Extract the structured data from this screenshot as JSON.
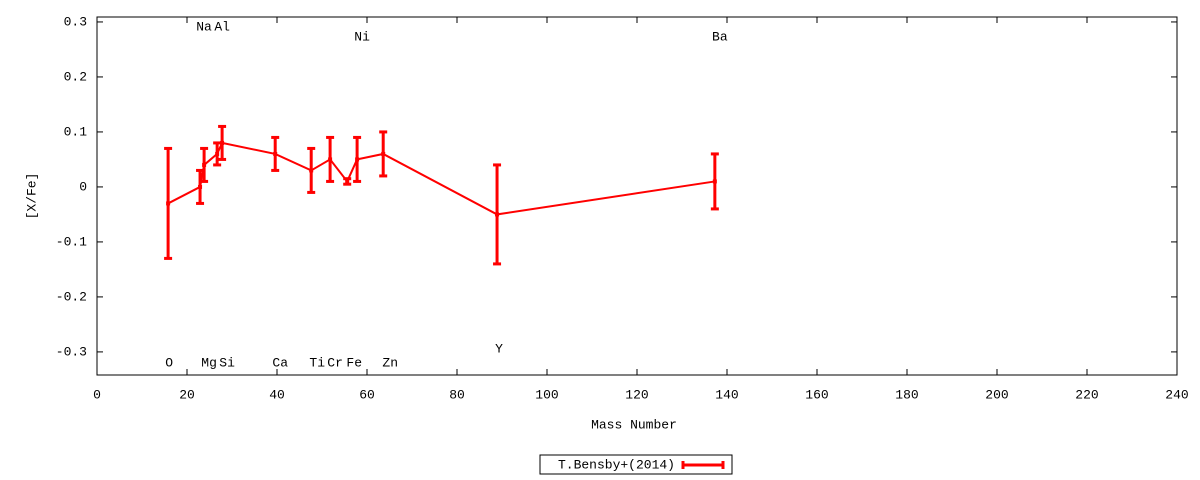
{
  "chart_data": {
    "type": "errorlines",
    "xlabel": "Mass Number",
    "ylabel": "[X/Fe]",
    "xlim": [
      0,
      240
    ],
    "xticks": [
      0,
      20,
      40,
      60,
      80,
      100,
      120,
      140,
      160,
      180,
      200,
      220,
      240
    ],
    "ylim": [
      -0.342,
      0.309
    ],
    "yticks": [
      -0.3,
      -0.2,
      -0.1,
      0,
      0.1,
      0.2,
      0.3
    ],
    "legend": "bottom-center",
    "series": [
      {
        "name": "T.Bensby+(2014)",
        "color": "#ff0000",
        "x": [
          15.8,
          22.9,
          23.8,
          26.7,
          27.8,
          39.6,
          47.6,
          51.8,
          55.6,
          57.8,
          63.6,
          88.9,
          137.3
        ],
        "values": [
          -0.03,
          0.0,
          0.04,
          0.06,
          0.08,
          0.06,
          0.03,
          0.05,
          0.01,
          0.05,
          0.06,
          -0.05,
          0.01
        ],
        "errors": [
          0.1,
          0.03,
          0.03,
          0.02,
          0.03,
          0.03,
          0.04,
          0.04,
          0.005,
          0.04,
          0.04,
          0.09,
          0.05
        ],
        "point_labels": [
          "O",
          "Na",
          "Mg",
          "Al",
          "Si",
          "Ca",
          "Ti",
          "Cr",
          "Fe",
          "Ni",
          "Zn",
          "Y",
          "Ba"
        ]
      }
    ]
  }
}
